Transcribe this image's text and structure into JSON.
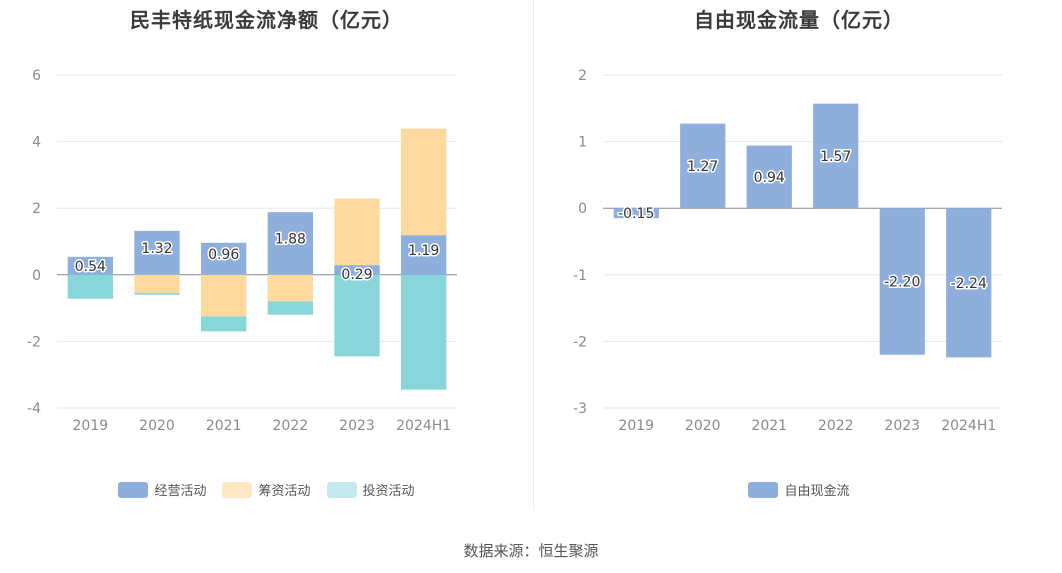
{
  "source": "数据来源：恒生聚源",
  "chart_data": [
    {
      "type": "bar",
      "stacked": true,
      "title": "民丰特纸现金流净额（亿元）",
      "categories": [
        "2019",
        "2020",
        "2021",
        "2022",
        "2023",
        "2024H1"
      ],
      "ylim": [
        -4,
        6
      ],
      "yticks": [
        -4,
        -2,
        0,
        2,
        4,
        6
      ],
      "grid": true,
      "legend_position": "bottom",
      "series": [
        {
          "name": "经营活动",
          "color": "#8eaedc",
          "values": [
            0.54,
            1.32,
            0.96,
            1.88,
            0.29,
            1.19
          ],
          "labels": [
            "0.54",
            "1.32",
            "0.96",
            "1.88",
            "0.29",
            "1.19"
          ]
        },
        {
          "name": "筹资活动",
          "color": "#fed99e",
          "values": [
            0,
            -0.55,
            -1.25,
            -0.8,
            2.0,
            3.2
          ]
        },
        {
          "name": "投资活动",
          "color": "#88d5da",
          "values": [
            -0.72,
            -0.05,
            -0.45,
            -0.4,
            -2.45,
            -3.45
          ]
        }
      ],
      "legend": [
        {
          "name": "经营活动",
          "color": "#8eaedc"
        },
        {
          "name": "筹资活动",
          "color": "#fde8c4"
        },
        {
          "name": "投资活动",
          "color": "#c4e9ec"
        }
      ]
    },
    {
      "type": "bar",
      "title": "自由现金流量（亿元）",
      "categories": [
        "2019",
        "2020",
        "2021",
        "2022",
        "2023",
        "2024H1"
      ],
      "ylim": [
        -3,
        2
      ],
      "yticks": [
        -3,
        -2,
        -1,
        0,
        1,
        2
      ],
      "grid": true,
      "legend_position": "bottom",
      "series": [
        {
          "name": "自由现金流",
          "color": "#8eaedc",
          "values": [
            -0.15,
            1.27,
            0.94,
            1.57,
            -2.2,
            -2.24
          ],
          "labels": [
            "-0.15",
            "1.27",
            "0.94",
            "1.57",
            "-2.20",
            "-2.24"
          ]
        }
      ],
      "legend": [
        {
          "name": "自由现金流",
          "color": "#8eaedc"
        }
      ]
    }
  ]
}
